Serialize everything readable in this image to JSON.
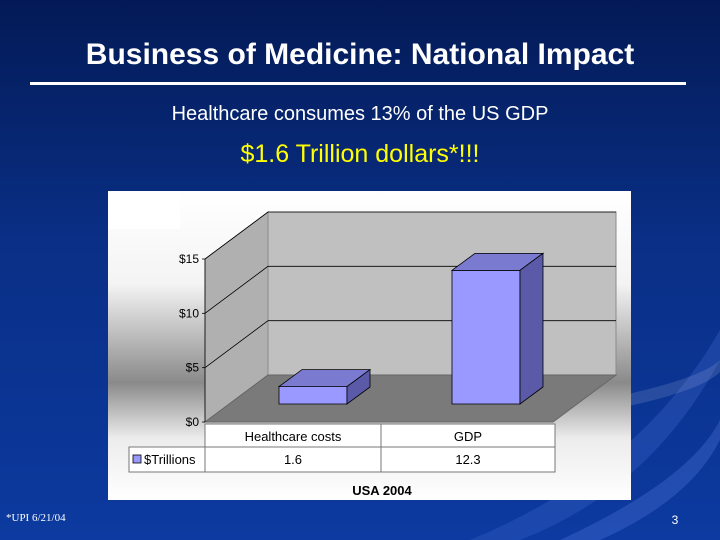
{
  "slide": {
    "title": "Business of Medicine:  National Impact",
    "subtitle": "Healthcare consumes 13% of the US GDP",
    "highlight": "$1.6 Trillion dollars*!!!",
    "footnote": "*UPI 6/21/04",
    "page_number": "3"
  },
  "chart_data": {
    "type": "bar",
    "categories": [
      "Healthcare costs",
      "GDP"
    ],
    "series": [
      {
        "name": "$Trillions",
        "values": [
          1.6,
          12.3
        ],
        "color": "#9999ff"
      }
    ],
    "data_table": true,
    "table_values": [
      "1.6",
      "12.3"
    ],
    "ylim": [
      0,
      15
    ],
    "yticks": [
      0,
      5,
      10,
      15
    ],
    "ytick_labels": [
      "$0",
      "$5",
      "$10",
      "$15"
    ],
    "xlabel": "USA 2004",
    "grid": true,
    "style": "3d-column",
    "colors": {
      "bar_front": "#9999ff",
      "bar_top": "#7a7ad0",
      "bar_side": "#5a5aa8",
      "floor": "#7a7a7a",
      "wall": "#c0c0c0"
    }
  }
}
